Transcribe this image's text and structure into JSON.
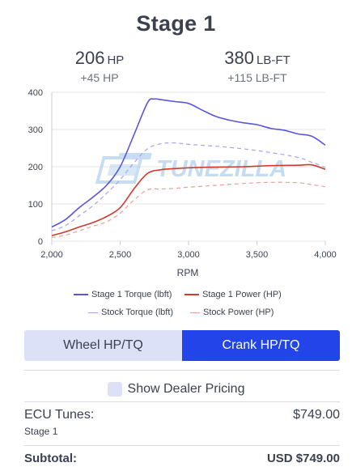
{
  "page": {
    "title": "Stage 1"
  },
  "stats": {
    "hp": {
      "value": "206",
      "unit": "HP",
      "gain": "+45 HP"
    },
    "torque": {
      "value": "380",
      "unit": "LB-FT",
      "gain": "+115 LB-FT"
    }
  },
  "watermark": "TUNEZILLA",
  "colors": {
    "accent": "#2244e8",
    "accent_light": "#dde1f7",
    "torque": "#5b55dc",
    "power": "#d03a2c"
  },
  "chart_data": {
    "type": "line",
    "xlabel": "RPM",
    "ylabel": "",
    "xlim": [
      2000,
      4000
    ],
    "ylim": [
      0,
      400
    ],
    "x_ticks": [
      "2,000",
      "2,500",
      "3,000",
      "3,500",
      "4,000"
    ],
    "y_ticks": [
      "0",
      "100",
      "200",
      "300",
      "400"
    ],
    "grid": "y",
    "legend": "bottom",
    "series": [
      {
        "name": "Stage 1 Torque (lbft)",
        "style": "solid",
        "color": "#5b55dc",
        "x": [
          2000,
          2100,
          2200,
          2300,
          2400,
          2500,
          2600,
          2700,
          2750,
          2800,
          2900,
          3000,
          3100,
          3200,
          3300,
          3400,
          3500,
          3600,
          3700,
          3800,
          3900,
          4000
        ],
        "y": [
          38,
          58,
          90,
          118,
          150,
          200,
          285,
          372,
          382,
          380,
          375,
          370,
          352,
          335,
          325,
          318,
          313,
          303,
          298,
          288,
          282,
          258
        ]
      },
      {
        "name": "Stage 1 Power (HP)",
        "style": "solid",
        "color": "#d03a2c",
        "x": [
          2000,
          2100,
          2200,
          2300,
          2400,
          2500,
          2600,
          2700,
          2800,
          2900,
          3000,
          3200,
          3400,
          3600,
          3800,
          3900,
          4000
        ],
        "y": [
          15,
          25,
          38,
          50,
          66,
          90,
          140,
          182,
          192,
          195,
          197,
          199,
          200,
          203,
          204,
          205,
          193
        ]
      },
      {
        "name": "Stock Torque (lbft)",
        "style": "dashed",
        "color": "#a8a2ee",
        "x": [
          2000,
          2100,
          2200,
          2300,
          2400,
          2500,
          2600,
          2700,
          2800,
          2900,
          3000,
          3200,
          3400,
          3600,
          3800,
          3900,
          4000
        ],
        "y": [
          28,
          42,
          68,
          95,
          128,
          165,
          210,
          248,
          262,
          264,
          260,
          255,
          248,
          238,
          225,
          212,
          198
        ]
      },
      {
        "name": "Stock Power (HP)",
        "style": "dashed",
        "color": "#ec9f96",
        "x": [
          2000,
          2100,
          2200,
          2300,
          2400,
          2500,
          2600,
          2700,
          2800,
          2900,
          3000,
          3200,
          3400,
          3600,
          3800,
          3900,
          4000
        ],
        "y": [
          10,
          16,
          28,
          40,
          52,
          75,
          110,
          138,
          140,
          142,
          145,
          150,
          155,
          158,
          157,
          152,
          146
        ]
      }
    ]
  },
  "toggle": {
    "wheel_label": "Wheel HP/TQ",
    "crank_label": "Crank HP/TQ",
    "selected": "crank"
  },
  "dealer": {
    "label": "Show Dealer Pricing",
    "checked": false
  },
  "line_item": {
    "label": "ECU Tunes:",
    "sub": "Stage 1",
    "price": "$749.00"
  },
  "subtotal": {
    "label": "Subtotal:",
    "value": "USD $749.00"
  }
}
